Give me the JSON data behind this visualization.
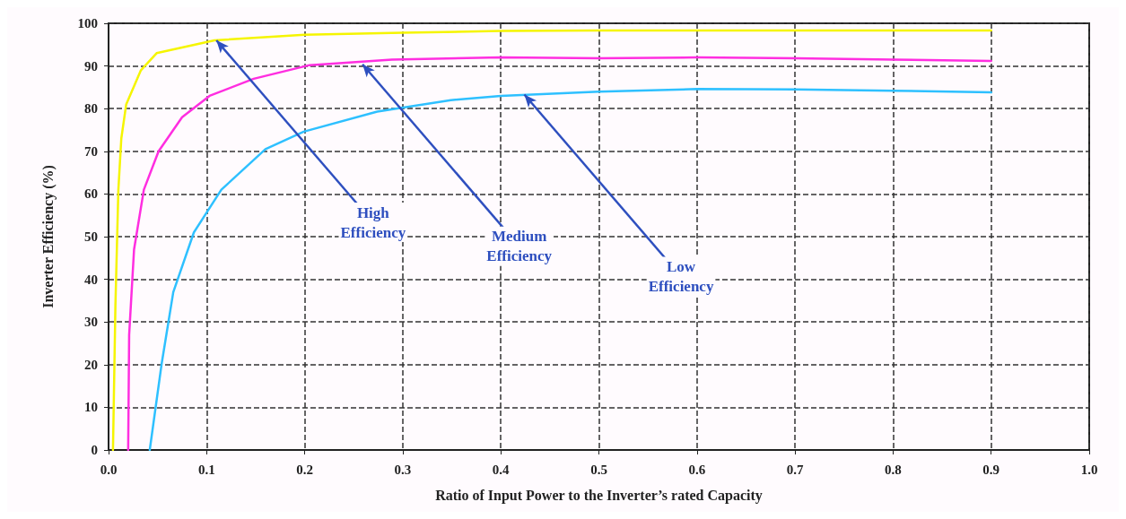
{
  "chart_data": {
    "type": "line",
    "xlabel": "Ratio of Input Power to the Inverter’s rated Capacity",
    "ylabel": "Inverter Efficiency (%)",
    "xlim": [
      0,
      1
    ],
    "ylim": [
      0,
      100
    ],
    "xticks": [
      {
        "value": 0,
        "label": "0.0"
      },
      0.1,
      0.2,
      0.3,
      0.4,
      0.5,
      0.6,
      0.7,
      0.8,
      0.9,
      {
        "value": 1,
        "label": "1.0"
      }
    ],
    "yticks": [
      0,
      10,
      20,
      30,
      40,
      50,
      60,
      70,
      80,
      90,
      100
    ],
    "grid": true,
    "line_style": "solid",
    "marker": "none",
    "series": [
      {
        "color": "#f5f500",
        "x": [
          0.0045,
          0.007,
          0.01,
          0.013,
          0.018,
          0.033,
          0.049,
          0.108,
          0.2,
          0.3,
          0.4,
          0.5,
          0.6,
          0.7,
          0.8,
          0.9
        ],
        "values": [
          0,
          34,
          61,
          73,
          81,
          89,
          93,
          96,
          97.3,
          97.8,
          98.2,
          98.3,
          98.3,
          98.3,
          98.3,
          98.3
        ]
      },
      {
        "color": "#ff2ee0",
        "x": [
          0.02,
          0.021,
          0.026,
          0.036,
          0.051,
          0.075,
          0.103,
          0.148,
          0.205,
          0.289,
          0.4,
          0.5,
          0.6,
          0.7,
          0.8,
          0.9
        ],
        "values": [
          0,
          27,
          47,
          61,
          70,
          78,
          83,
          87,
          90.2,
          91.5,
          92,
          91.8,
          92,
          91.8,
          91.5,
          91.2
        ]
      },
      {
        "color": "#2ec0ff",
        "x": [
          0.042,
          0.054,
          0.066,
          0.087,
          0.115,
          0.16,
          0.199,
          0.274,
          0.349,
          0.4,
          0.5,
          0.6,
          0.7,
          0.8,
          0.9
        ],
        "values": [
          0,
          20,
          37,
          51,
          61,
          70.5,
          74.6,
          79.3,
          82,
          83,
          84,
          84.6,
          84.5,
          84.2,
          83.8
        ]
      }
    ],
    "annotations": [
      {
        "text": "High Efficiency",
        "x": 0.11,
        "y": 96
      },
      {
        "text": "Medium Efficiency",
        "x": 0.259,
        "y": 90.4
      },
      {
        "text": "Low Efficiency",
        "x": 0.424,
        "y": 83.3
      }
    ]
  }
}
